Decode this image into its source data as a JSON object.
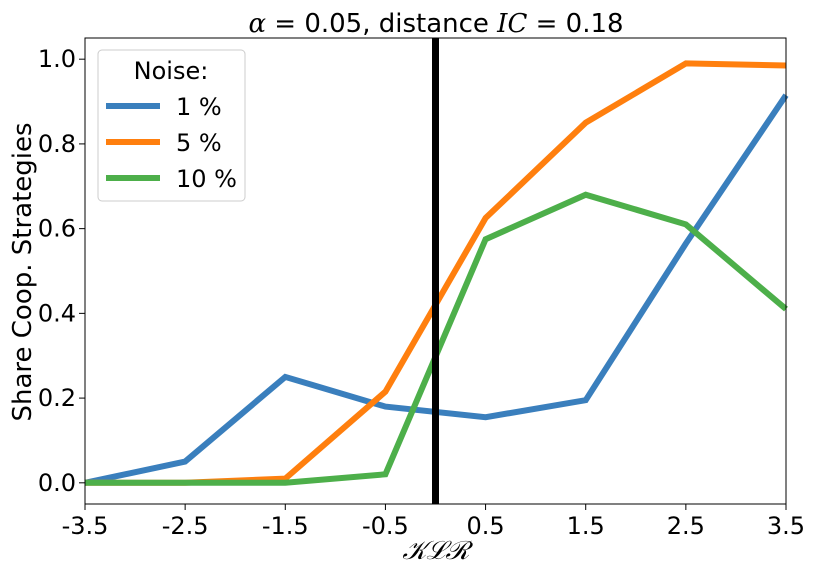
{
  "chart_data": {
    "type": "line",
    "title": "α = 0.05, distance IC = 0.18",
    "title_parts": {
      "alpha": "α",
      "eq1": " = 0.05, distance ",
      "ic": "IC",
      "eq2": " = 0.18"
    },
    "xlabel": "𝒦ℒℛ",
    "ylabel": "Share Coop. Strategies",
    "x": [
      -3.5,
      -2.5,
      -1.5,
      -0.5,
      0.5,
      1.5,
      2.5,
      3.5
    ],
    "x_tick_labels": [
      "-3.5",
      "-2.5",
      "-1.5",
      "-0.5",
      "0.5",
      "1.5",
      "2.5",
      "3.5"
    ],
    "y_ticks": [
      0.0,
      0.2,
      0.4,
      0.6,
      0.8,
      1.0
    ],
    "y_tick_labels": [
      "0.0",
      "0.2",
      "0.4",
      "0.6",
      "0.8",
      "1.0"
    ],
    "xlim": [
      -3.5,
      3.5
    ],
    "ylim": [
      -0.05,
      1.05
    ],
    "grid": false,
    "legend": {
      "title": "Noise:",
      "placement": "top-left"
    },
    "vertical_line": {
      "x": 0.0,
      "color": "#000000"
    },
    "series": [
      {
        "name": "1 %",
        "color": "#3a7fbd",
        "values": [
          0.0,
          0.05,
          0.25,
          0.18,
          0.155,
          0.195,
          0.565,
          0.915
        ]
      },
      {
        "name": "5 %",
        "color": "#ff7f0e",
        "values": [
          0.0,
          0.0,
          0.01,
          0.215,
          0.625,
          0.85,
          0.99,
          0.985
        ]
      },
      {
        "name": "10 %",
        "color": "#4daf4a",
        "values": [
          0.0,
          0.0,
          0.0,
          0.02,
          0.575,
          0.68,
          0.61,
          0.41
        ]
      }
    ]
  }
}
